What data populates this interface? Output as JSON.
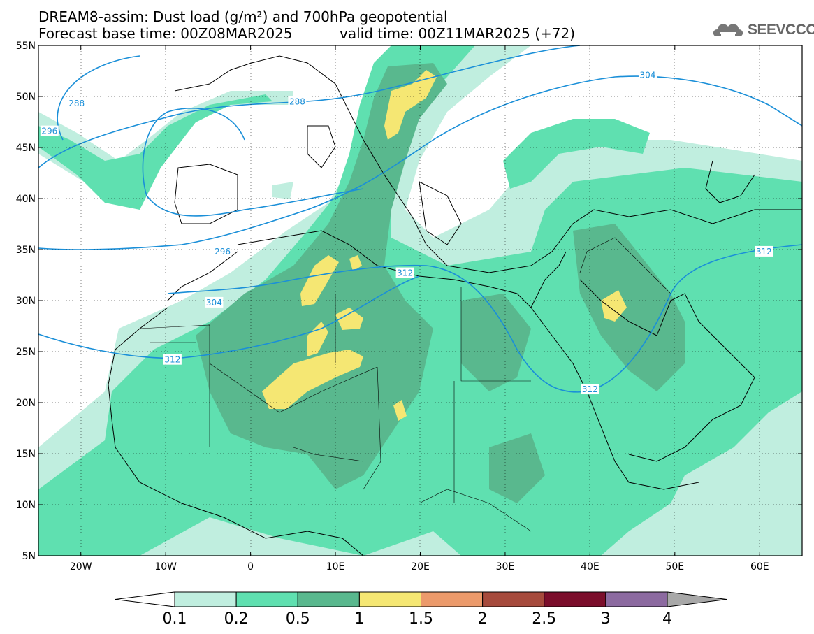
{
  "title": {
    "line1": "DREAM8-assim: Dust load (g/m²) and 700hPa geopotential",
    "line2_left": "Forecast base time: 00Z08MAR2025",
    "line2_right": "valid time: 00Z11MAR2025 (+72)"
  },
  "logo": {
    "text": "SEEVCCC",
    "icon": "cloud-icon"
  },
  "map": {
    "lon_range": [
      -25,
      65
    ],
    "lat_range": [
      5,
      55
    ],
    "lon_ticks": [
      {
        "value": -20,
        "label": "20W"
      },
      {
        "value": -10,
        "label": "10W"
      },
      {
        "value": 0,
        "label": "0"
      },
      {
        "value": 10,
        "label": "10E"
      },
      {
        "value": 20,
        "label": "20E"
      },
      {
        "value": 30,
        "label": "30E"
      },
      {
        "value": 40,
        "label": "40E"
      },
      {
        "value": 50,
        "label": "50E"
      },
      {
        "value": 60,
        "label": "60E"
      }
    ],
    "lat_ticks": [
      {
        "value": 55,
        "label": "55N"
      },
      {
        "value": 50,
        "label": "50N"
      },
      {
        "value": 45,
        "label": "45N"
      },
      {
        "value": 40,
        "label": "40N"
      },
      {
        "value": 35,
        "label": "35N"
      },
      {
        "value": 30,
        "label": "30N"
      },
      {
        "value": 25,
        "label": "25N"
      },
      {
        "value": 20,
        "label": "20N"
      },
      {
        "value": 15,
        "label": "15N"
      },
      {
        "value": 10,
        "label": "10N"
      },
      {
        "value": 5,
        "label": "5N"
      }
    ],
    "contour_labels": [
      {
        "text": "288",
        "lon": -20.5,
        "lat": 49.3
      },
      {
        "text": "288",
        "lon": 5.5,
        "lat": 49.5
      },
      {
        "text": "296",
        "lon": -23.7,
        "lat": 46.6
      },
      {
        "text": "296",
        "lon": -3.3,
        "lat": 34.8
      },
      {
        "text": "304",
        "lon": -4.3,
        "lat": 29.8
      },
      {
        "text": "304",
        "lon": 46.8,
        "lat": 52.1
      },
      {
        "text": "312",
        "lon": -9.2,
        "lat": 24.2
      },
      {
        "text": "312",
        "lon": 18.2,
        "lat": 32.7
      },
      {
        "text": "312",
        "lon": 40.0,
        "lat": 21.3
      },
      {
        "text": "312",
        "lon": 60.5,
        "lat": 34.8
      }
    ]
  },
  "colorbar": {
    "colors": [
      "#ffffff",
      "#c0eedf",
      "#5fe0b0",
      "#59b88e",
      "#f5e773",
      "#ec9a6b",
      "#a64a3c",
      "#7b0d2b",
      "#8c6aa0",
      "#a8a8a8"
    ],
    "labels": [
      "0.1",
      "0.2",
      "0.5",
      "1",
      "1.5",
      "2",
      "2.5",
      "3",
      "4"
    ]
  },
  "colors": {
    "contour": "#1a8fd8",
    "dust_low": "#c0eedf",
    "dust_mid": "#5fe0b0",
    "dust_high": "#59b88e",
    "dust_peak": "#f5e773"
  }
}
